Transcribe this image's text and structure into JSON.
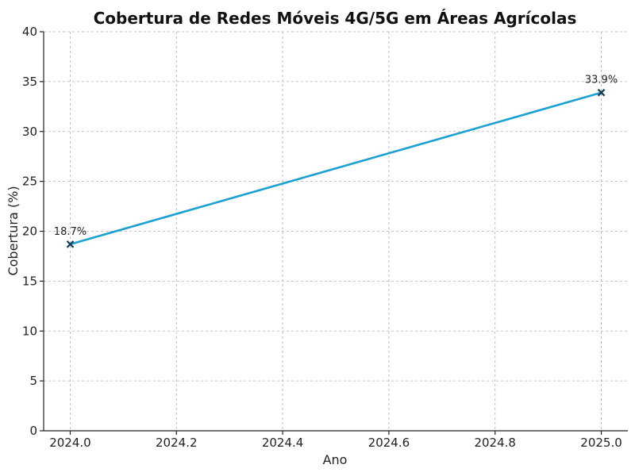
{
  "chart_data": {
    "type": "line",
    "title": "Cobertura de Redes Móveis 4G/5G em Áreas Agrícolas",
    "xlabel": "Ano",
    "ylabel": "Cobertura (%)",
    "xlim": [
      2023.95,
      2025.05
    ],
    "ylim": [
      0,
      40
    ],
    "xticks": [
      "2024.0",
      "2024.2",
      "2024.4",
      "2024.6",
      "2024.8",
      "2025.0"
    ],
    "xtick_values": [
      2024.0,
      2024.2,
      2024.4,
      2024.6,
      2024.8,
      2025.0
    ],
    "yticks": [
      "0",
      "5",
      "10",
      "15",
      "20",
      "25",
      "30",
      "35",
      "40"
    ],
    "ytick_values": [
      0,
      5,
      10,
      15,
      20,
      25,
      30,
      35,
      40
    ],
    "grid": true,
    "series": [
      {
        "x": [
          2024.0,
          2025.0
        ],
        "y": [
          18.7,
          33.9
        ],
        "labels": [
          "18.7%",
          "33.9%"
        ],
        "color": "#1aa0d2",
        "marker_color": "#0d3b52",
        "marker": "x"
      }
    ]
  }
}
